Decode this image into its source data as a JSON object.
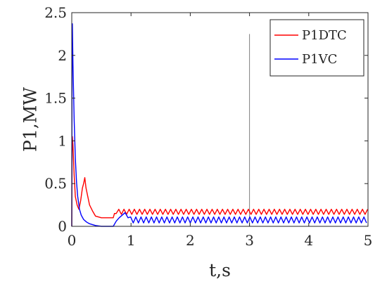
{
  "chart_data": {
    "type": "line",
    "xlabel": "t,s",
    "ylabel": "P1,MW",
    "xlim": [
      0,
      5
    ],
    "ylim": [
      0,
      2.5
    ],
    "xticks": [
      "0",
      "1",
      "2",
      "3",
      "4",
      "5"
    ],
    "yticks": [
      "0",
      "0.5",
      "1",
      "1.5",
      "2",
      "2.5"
    ],
    "grid": false,
    "legend_position": "top-right",
    "series": [
      {
        "name": "P1DTC",
        "color": "#ff0000",
        "x": [
          0,
          0.005,
          0.01,
          0.02,
          0.04,
          0.06,
          0.09,
          0.12,
          0.15,
          0.18,
          0.2,
          0.22,
          0.24,
          0.27,
          0.3,
          0.35,
          0.4,
          0.5,
          0.6,
          0.7,
          0.72,
          0.75
        ],
        "y": [
          0,
          0.85,
          1.05,
          0.95,
          0.6,
          0.35,
          0.25,
          0.2,
          0.3,
          0.45,
          0.5,
          0.57,
          0.45,
          0.35,
          0.25,
          0.18,
          0.12,
          0.1,
          0.1,
          0.1,
          0.15,
          0.15
        ],
        "ripple": {
          "start": 0.75,
          "end": 5,
          "min": 0.14,
          "max": 0.2,
          "period": 0.0875
        }
      },
      {
        "name": "P1VC",
        "color": "#0000ff",
        "x": [
          0,
          0.005,
          0.01,
          0.02,
          0.04,
          0.06,
          0.08,
          0.1,
          0.13,
          0.16,
          0.2,
          0.25,
          0.3,
          0.4,
          0.5,
          0.6,
          0.7,
          0.75,
          0.8,
          0.85,
          0.9,
          0.95
        ],
        "y": [
          0,
          2.1,
          2.37,
          1.9,
          1.25,
          0.8,
          0.52,
          0.35,
          0.2,
          0.13,
          0.08,
          0.05,
          0.03,
          0.01,
          0,
          0,
          0,
          0.06,
          0.1,
          0.13,
          0.16,
          0.1
        ],
        "ripple": {
          "start": 0.95,
          "end": 5,
          "min": 0.04,
          "max": 0.11,
          "period": 0.0875
        }
      }
    ],
    "marker_line": {
      "x": 3,
      "y_top": 2.25,
      "color": "#808080"
    }
  }
}
